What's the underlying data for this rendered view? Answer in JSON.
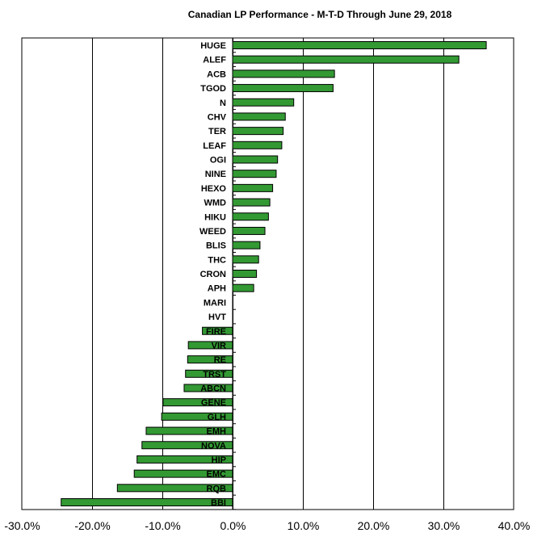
{
  "chart_data": {
    "type": "bar",
    "orientation": "horizontal",
    "title": "Canadian LP Performance -  M-T-D Through June 29, 2018",
    "xlabel": "",
    "ylabel": "",
    "xlim": [
      -30,
      40
    ],
    "xticks": [
      -30,
      -20,
      -10,
      0,
      10,
      20,
      30,
      40
    ],
    "xtick_labels": [
      "-30.0%",
      "-20.0%",
      "-10.0%",
      "0.0%",
      "10.0%",
      "20.0%",
      "30.0%",
      "40.0%"
    ],
    "grid": "vertical",
    "bar_color": "#339933",
    "categories": [
      "HUGE",
      "ALEF",
      "ACB",
      "TGOD",
      "N",
      "CHV",
      "TER",
      "LEAF",
      "OGI",
      "NINE",
      "HEXO",
      "WMD",
      "HIKU",
      "WEED",
      "BLIS",
      "THC",
      "CRON",
      "APH",
      "MARI",
      "HVT",
      "FIRE",
      "VIR",
      "RE",
      "TRST",
      "ABCN",
      "GENE",
      "GLH",
      "EMH",
      "NOVA",
      "HIP",
      "EMC",
      "RQB",
      "BBI"
    ],
    "values": [
      36.1,
      32.2,
      14.5,
      14.3,
      8.7,
      7.5,
      7.2,
      7.0,
      6.4,
      6.2,
      5.7,
      5.3,
      5.1,
      4.6,
      3.9,
      3.7,
      3.4,
      3.0,
      0.0,
      0.0,
      -4.3,
      -6.3,
      -6.4,
      -6.7,
      -6.9,
      -9.9,
      -10.1,
      -12.3,
      -12.9,
      -13.6,
      -14.0,
      -16.4,
      -24.4
    ]
  }
}
